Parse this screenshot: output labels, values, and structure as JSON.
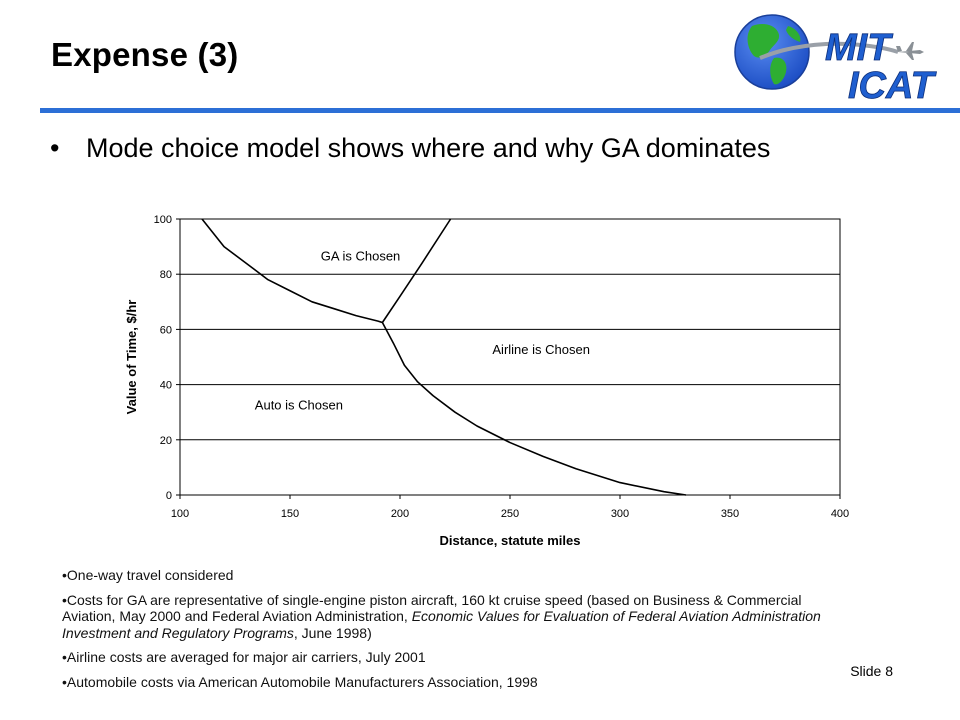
{
  "slide": {
    "title": "Expense (3)",
    "bullet": "Mode choice model shows where and why GA dominates",
    "bullet_marker": "•",
    "slide_number": "Slide 8",
    "logo": {
      "line1": "MIT",
      "line2": "ICAT"
    },
    "colors": {
      "rule": "#2c6fd6",
      "logo_text": "#1f5fd0",
      "globe_ocean": "#1e5ad8",
      "globe_land": "#2eae32"
    }
  },
  "notes": [
    {
      "parts": [
        {
          "text": "•One-way travel considered",
          "italic": false
        }
      ]
    },
    {
      "parts": [
        {
          "text": "•Costs for GA are representative of single-engine piston aircraft, 160 kt cruise speed (based on Business & Commercial Aviation, May 2000 and Federal Aviation Administration, ",
          "italic": false
        },
        {
          "text": "Economic Values for Evaluation of Federal Aviation Administration Investment and Regulatory Programs",
          "italic": true
        },
        {
          "text": ", June 1998)",
          "italic": false
        }
      ]
    },
    {
      "parts": [
        {
          "text": "•Airline costs are averaged for major air carriers,  July 2001",
          "italic": false
        }
      ]
    },
    {
      "parts": [
        {
          "text": "•Automobile costs via American Automobile Manufacturers Association, 1998",
          "italic": false
        }
      ]
    }
  ],
  "chart_data": {
    "type": "line",
    "xlabel": "Distance, statute miles",
    "ylabel": "Value of Time, $/hr",
    "xlim": [
      100,
      400
    ],
    "ylim": [
      0,
      100
    ],
    "xticks": [
      100,
      150,
      200,
      250,
      300,
      350,
      400
    ],
    "yticks": [
      0,
      20,
      40,
      60,
      80,
      100
    ],
    "grid": "horizontal",
    "series": [
      {
        "x": [
          110,
          120,
          130,
          140,
          150,
          160,
          170,
          180,
          190,
          192
        ],
        "y": [
          100,
          90,
          84,
          78,
          74,
          70,
          67.5,
          65,
          63,
          62.5
        ]
      },
      {
        "x": [
          192,
          197,
          202,
          208,
          215,
          225,
          235,
          250,
          265,
          280,
          300,
          320,
          330
        ],
        "y": [
          62.5,
          55,
          47,
          41,
          36,
          30,
          25,
          19,
          14,
          9.5,
          4.5,
          1.2,
          0
        ]
      },
      {
        "x": [
          192,
          200,
          210,
          223
        ],
        "y": [
          62.5,
          72,
          84,
          100
        ]
      }
    ],
    "annotations": [
      {
        "text": "GA is Chosen",
        "x": 164,
        "y": 85
      },
      {
        "text": "Airline is Chosen",
        "x": 242,
        "y": 51
      },
      {
        "text": "Auto is Chosen",
        "x": 134,
        "y": 31
      }
    ]
  }
}
